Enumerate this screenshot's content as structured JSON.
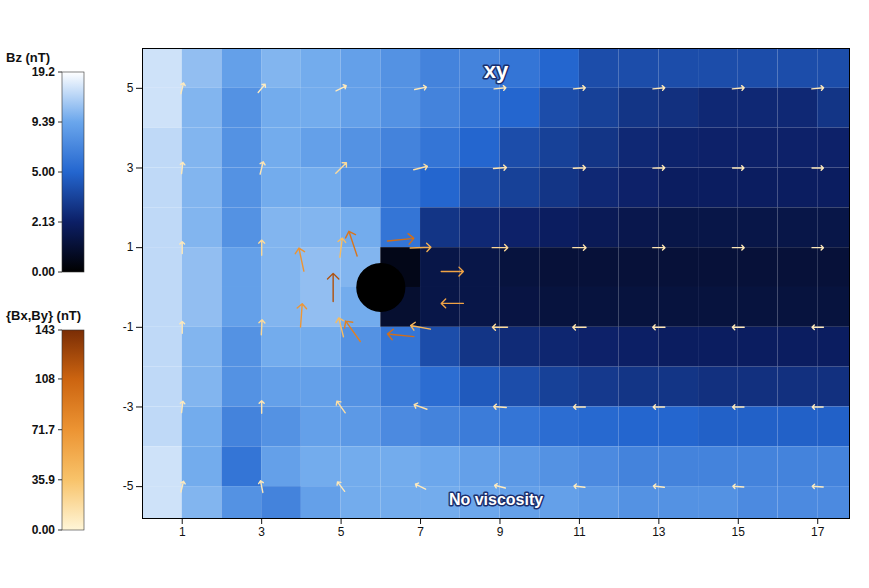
{
  "chart_data": {
    "type": "heatmap_vector",
    "title": "xy",
    "annotations": [
      "No viscosity"
    ],
    "xlim": [
      0,
      17.8
    ],
    "xticks": [
      1,
      3,
      5,
      7,
      9,
      11,
      13,
      15,
      17
    ],
    "ylim": [
      -5.8,
      6.0
    ],
    "yticks": [
      -5,
      -3,
      -1,
      1,
      3,
      5
    ],
    "body": {
      "x": 6,
      "y": 0,
      "r": 0.6
    },
    "bz": {
      "x": [
        0.5,
        1.5,
        2.5,
        3.5,
        4.5,
        5.5,
        6.5,
        7.5,
        8.5,
        9.5,
        10.5,
        11.5,
        12.5,
        13.5,
        14.5,
        15.5,
        16.5,
        17.5
      ],
      "y": [
        5.5,
        4.5,
        3.5,
        2.5,
        1.5,
        0.5,
        -0.5,
        -1.5,
        -2.5,
        -3.5,
        -4.5,
        -5.5
      ],
      "values": [
        [
          16,
          12,
          9,
          11,
          10,
          9,
          8,
          7,
          7,
          6,
          5,
          4,
          4,
          4,
          4,
          4,
          4,
          4
        ],
        [
          16,
          11,
          8,
          10,
          10,
          9,
          8,
          7,
          6,
          5,
          4,
          3.5,
          3,
          2.8,
          2.5,
          2.5,
          2.5,
          3
        ],
        [
          15,
          11,
          8,
          10,
          9,
          8,
          7,
          6,
          5,
          4,
          3.5,
          3,
          2.5,
          2.3,
          2.2,
          2.2,
          2.2,
          2.2
        ],
        [
          15,
          11,
          8,
          10,
          10,
          8,
          6,
          5,
          4,
          3.5,
          3,
          2.5,
          2.2,
          2,
          2,
          2,
          2,
          2
        ],
        [
          15,
          11,
          8,
          11,
          11,
          10,
          6,
          3,
          2.5,
          2.2,
          2,
          1.8,
          1.6,
          1.5,
          1.5,
          1.5,
          1.5,
          1.5
        ],
        [
          15,
          12,
          9,
          11,
          12,
          11,
          0.5,
          1.5,
          1.5,
          1.3,
          1.2,
          1.2,
          1.2,
          1.2,
          1.2,
          1.2,
          1.2,
          1.2
        ],
        [
          15,
          12,
          9,
          11,
          12,
          10,
          1,
          1.5,
          1.5,
          1.4,
          1.3,
          1.3,
          1.3,
          1.3,
          1.3,
          1.3,
          1.3,
          1.3
        ],
        [
          15,
          11,
          8,
          10,
          10,
          8,
          6,
          4,
          3,
          2.6,
          2.4,
          2.2,
          2.1,
          2,
          2,
          2,
          2,
          2
        ],
        [
          15,
          11,
          8,
          9,
          9,
          8,
          6.5,
          5.5,
          4.5,
          4,
          3.5,
          3.2,
          3,
          3,
          2.8,
          2.8,
          2.8,
          2.8
        ],
        [
          15,
          10,
          7,
          8,
          9,
          8.5,
          7.5,
          7,
          6.5,
          6,
          5.5,
          5.2,
          5,
          5,
          4.8,
          4.8,
          4.8,
          4.8
        ],
        [
          16,
          10,
          6,
          9,
          10,
          10,
          10,
          9.5,
          9,
          8.5,
          8,
          7.5,
          7,
          7,
          7,
          7,
          7,
          7
        ],
        [
          16,
          11,
          8,
          7,
          9,
          10,
          10,
          10,
          9.5,
          9,
          9,
          8.5,
          8,
          8,
          8,
          7.5,
          7.5,
          7.5
        ]
      ]
    },
    "bz_colorbar": {
      "title": "Bz (nT)",
      "range": [
        0,
        19.2
      ],
      "ticks": [
        {
          "value": 0,
          "label": "0.00"
        },
        2.13,
        {
          "value": 5,
          "label": "5.00"
        },
        9.39,
        19.2
      ]
    },
    "bxy_colorbar": {
      "title": "{Bx,By} (nT)",
      "range": [
        0,
        143
      ],
      "ticks": [
        {
          "value": 0,
          "label": "0.00"
        },
        35.9,
        71.7,
        108,
        143
      ]
    },
    "vectors": {
      "x": [
        1,
        3,
        5,
        7,
        9,
        11,
        13,
        15,
        17,
        1,
        3,
        5,
        7,
        9,
        11,
        13,
        15,
        17,
        1,
        3,
        5,
        7,
        9,
        11,
        13,
        15,
        17,
        1,
        3,
        5,
        7,
        9,
        11,
        13,
        15,
        17,
        1,
        3,
        5,
        7,
        9,
        11,
        13,
        15,
        17,
        1,
        3,
        5,
        7,
        9,
        11,
        13,
        15,
        17,
        4.8,
        4,
        4,
        5.3,
        5.3,
        6.5,
        6.5,
        7.8,
        7.8
      ],
      "y": [
        5,
        5,
        5,
        5,
        5,
        5,
        5,
        5,
        5,
        3,
        3,
        3,
        3,
        3,
        3,
        3,
        3,
        3,
        1,
        1,
        1,
        1,
        1,
        1,
        1,
        1,
        1,
        -1,
        -1,
        -1,
        -1,
        -1,
        -1,
        -1,
        -1,
        -1,
        -3,
        -3,
        -3,
        -3,
        -3,
        -3,
        -3,
        -3,
        -3,
        -5,
        -5,
        -5,
        -5,
        -5,
        -5,
        -5,
        -5,
        -5,
        0,
        0.7,
        -0.7,
        1.1,
        -1.1,
        1.2,
        -1.2,
        0.4,
        -0.4
      ],
      "bx": [
        2,
        5,
        8,
        10,
        10,
        10,
        10,
        10,
        10,
        1,
        3,
        14,
        16,
        13,
        11,
        10,
        9,
        9,
        0,
        0,
        5,
        50,
        22,
        14,
        11,
        10,
        9,
        0,
        1,
        -10,
        -45,
        -20,
        -14,
        -11,
        -10,
        -9,
        1,
        0,
        -10,
        -14,
        -12,
        -10,
        -9,
        -9,
        -8,
        2,
        -2,
        -6,
        -8,
        -8,
        -8,
        -8,
        -8,
        -8,
        0,
        -15,
        5,
        -30,
        -50,
        100,
        -100,
        60,
        -60
      ],
      "by": [
        8,
        6,
        4,
        2,
        1,
        1,
        1,
        1,
        1,
        9,
        12,
        14,
        4,
        1,
        0.5,
        0.3,
        0,
        0,
        10,
        20,
        40,
        2,
        0,
        0,
        0,
        0,
        0,
        10,
        20,
        40,
        8,
        0,
        0,
        0,
        0,
        0,
        9,
        12,
        14,
        5,
        1,
        0,
        0,
        0,
        0,
        8,
        10,
        8,
        4,
        2,
        1,
        1,
        0.5,
        0.5,
        120,
        70,
        70,
        90,
        70,
        10,
        10,
        0,
        0
      ]
    }
  }
}
